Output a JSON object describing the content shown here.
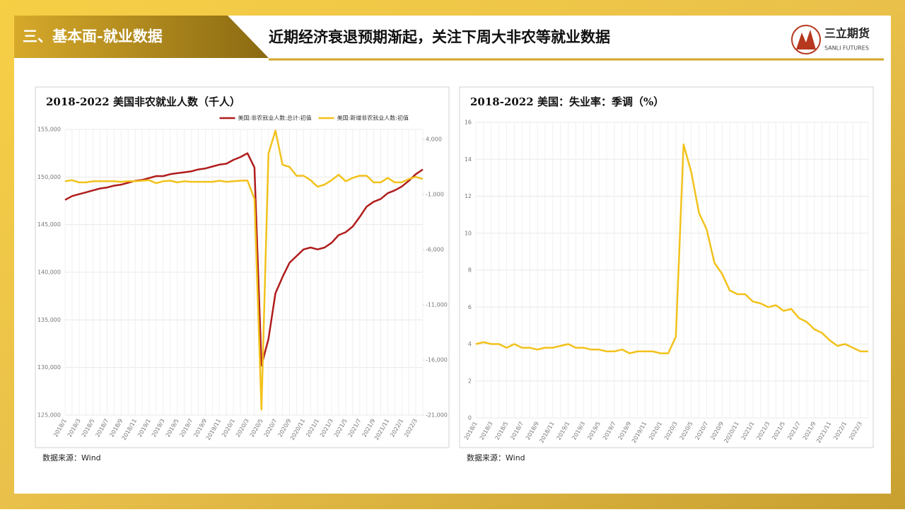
{
  "header": {
    "section": "三、基本面-就业数据",
    "title": "近期经济衰退预期渐起，关注下周大非农等就业数据",
    "logo_cn": "三立期货",
    "logo_en": "SANLI FUTURES"
  },
  "sources": [
    "数据来源：Wind",
    "数据来源：Wind"
  ],
  "chart_data": [
    {
      "type": "line",
      "title": "2018-2022 美国非农就业人数（千人）",
      "legend": "top-right",
      "grid": true,
      "categories": [
        "2018/1",
        null,
        "2018/3",
        null,
        "2018/5",
        null,
        "2018/7",
        null,
        "2018/9",
        null,
        "2018/11",
        null,
        "2019/1",
        null,
        "2019/3",
        null,
        "2019/5",
        null,
        "2019/7",
        null,
        "2019/9",
        null,
        "2019/11",
        null,
        "2020/1",
        null,
        "2020/3",
        null,
        "2020/5",
        null,
        "2020/7",
        null,
        "2020/9",
        null,
        "2020/11",
        null,
        "2021/1",
        null,
        "2021/3",
        null,
        "2021/5",
        null,
        "2021/7",
        null,
        "2021/9",
        null,
        "2021/11",
        null,
        "2022/1",
        null,
        "2022/3",
        null
      ],
      "ylim": [
        125000,
        155000
      ],
      "yticks": [
        {
          "value": 125000,
          "label": "125,000"
        },
        {
          "value": 130000,
          "label": "130,000"
        },
        {
          "value": 135000,
          "label": "135,000"
        },
        {
          "value": 140000,
          "label": "140,000"
        },
        {
          "value": 145000,
          "label": "145,000"
        },
        {
          "value": 150000,
          "label": "150,000"
        },
        {
          "value": 155000,
          "label": "155,000"
        }
      ],
      "y2lim": [
        -21000,
        4900
      ],
      "y2ticks": [
        {
          "value": -21000,
          "label": "-21,000"
        },
        {
          "value": -16000,
          "label": "-16,000"
        },
        {
          "value": -11000,
          "label": "-11,000"
        },
        {
          "value": -6000,
          "label": "-6,000"
        },
        {
          "value": -1000,
          "label": "-1,000"
        },
        {
          "value": 4000,
          "label": "4,000"
        }
      ],
      "series": [
        {
          "name": "美国:非农就业人数:总计:初值",
          "color": "#b01c1c",
          "values": [
            147600,
            148000,
            148200,
            148400,
            148600,
            148800,
            148900,
            149100,
            149200,
            149400,
            149600,
            149700,
            149900,
            150100,
            150100,
            150300,
            150400,
            150500,
            150600,
            150800,
            150900,
            151100,
            151300,
            151400,
            151800,
            152100,
            152500,
            151000,
            130200,
            133000,
            137800,
            139500,
            141000,
            141700,
            142400,
            142600,
            142400,
            142600,
            143100,
            143900,
            144200,
            144800,
            145800,
            146900,
            147400,
            147700,
            148300,
            148600,
            149000,
            149600,
            150300,
            150800
          ]
        },
        {
          "name": "美国:新增非农就业人数:初值",
          "color": "#f2c21b",
          "axis": "y2",
          "values": [
            200,
            300,
            100,
            100,
            200,
            200,
            200,
            200,
            150,
            200,
            200,
            250,
            300,
            20,
            200,
            250,
            100,
            200,
            150,
            150,
            150,
            150,
            250,
            150,
            200,
            250,
            270,
            -1400,
            -20500,
            2700,
            4800,
            1700,
            1500,
            700,
            700,
            300,
            -300,
            -100,
            300,
            800,
            200,
            500,
            700,
            700,
            100,
            100,
            500,
            100,
            100,
            400,
            600,
            400
          ]
        }
      ]
    },
    {
      "type": "line",
      "title": "2018-2022 美国：失业率：季调（%）",
      "grid": true,
      "categories": [
        "2018/1",
        null,
        "2018/3",
        null,
        "2018/5",
        null,
        "2018/7",
        null,
        "2018/9",
        null,
        "2018/11",
        null,
        "2019/1",
        null,
        "2019/3",
        null,
        "2019/5",
        null,
        "2019/7",
        null,
        "2019/9",
        null,
        "2019/11",
        null,
        "2020/1",
        null,
        "2020/3",
        null,
        "2020/5",
        null,
        "2020/7",
        null,
        "2020/9",
        null,
        "2020/11",
        null,
        "2021/1",
        null,
        "2021/3",
        null,
        "2021/5",
        null,
        "2021/7",
        null,
        "2021/9",
        null,
        "2021/11",
        null,
        "2022/1",
        null,
        "2022/3",
        null
      ],
      "ylim": [
        0,
        16
      ],
      "yticks": [
        0,
        2,
        4,
        6,
        8,
        10,
        12,
        14,
        16
      ],
      "series": [
        {
          "name": "美国：失业率：季调",
          "color": "#f2c21b",
          "values": [
            4.0,
            4.1,
            4.0,
            4.0,
            3.8,
            4.0,
            3.8,
            3.8,
            3.7,
            3.8,
            3.8,
            3.9,
            4.0,
            3.8,
            3.8,
            3.7,
            3.7,
            3.6,
            3.6,
            3.7,
            3.5,
            3.6,
            3.6,
            3.6,
            3.5,
            3.5,
            4.4,
            14.8,
            13.3,
            11.1,
            10.2,
            8.4,
            7.8,
            6.9,
            6.7,
            6.7,
            6.3,
            6.2,
            6.0,
            6.1,
            5.8,
            5.9,
            5.4,
            5.2,
            4.8,
            4.6,
            4.2,
            3.9,
            4.0,
            3.8,
            3.6,
            3.6
          ]
        }
      ]
    }
  ]
}
